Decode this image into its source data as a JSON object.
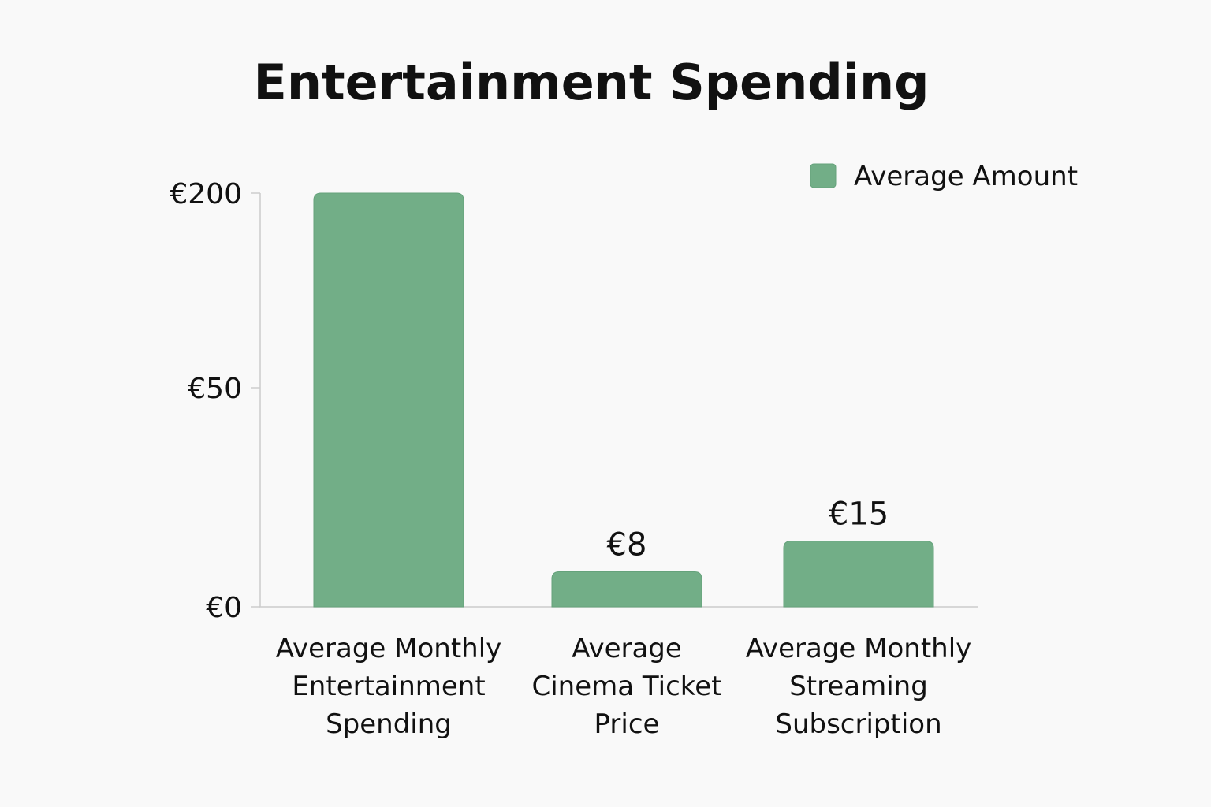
{
  "chart_data": {
    "type": "bar",
    "title": "Entertainment Spending",
    "xlabel": "",
    "ylabel": "",
    "y_scale": "nonlinear",
    "y_ticks": [
      {
        "value": 0,
        "label": "€0"
      },
      {
        "value": 50,
        "label": "€50"
      },
      {
        "value": 200,
        "label": "€200"
      }
    ],
    "ylim": [
      0,
      200
    ],
    "grid": false,
    "legend": "top-right",
    "colors": {
      "bar": "#72ae87",
      "axis": "#cccccc",
      "background": "#f9f9f9"
    },
    "categories": [
      [
        "Average Monthly",
        "Entertainment",
        "Spending"
      ],
      [
        "Average",
        "Cinema Ticket",
        "Price"
      ],
      [
        "Average Monthly",
        "Streaming",
        "Subscription"
      ]
    ],
    "series": [
      {
        "name": "Average Amount",
        "values": [
          200,
          8,
          15
        ],
        "value_labels": [
          "",
          "€8",
          "€15"
        ]
      }
    ]
  }
}
